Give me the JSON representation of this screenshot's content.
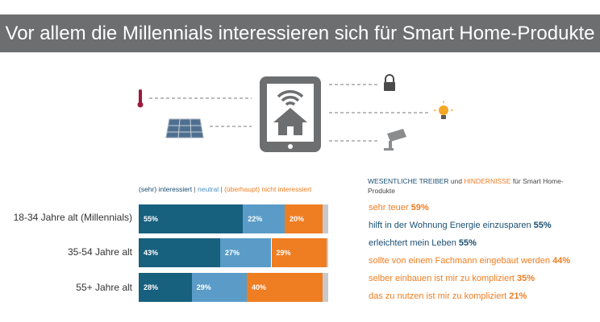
{
  "header": {
    "title": "Vor allem die Millennials interessieren sich für Smart Home-Produkte"
  },
  "illustration": {
    "icons": [
      "thermometer-icon",
      "solar-panel-icon",
      "tablet-smart-home-icon",
      "lock-icon",
      "light-bulb-icon",
      "security-camera-icon"
    ]
  },
  "colors": {
    "interested": "#17607e",
    "neutral": "#5a9cc7",
    "not_interested": "#ef7d22",
    "remainder": "#c8c9cb",
    "banner": "#6d6e70"
  },
  "legend": {
    "interested": "(sehr) interessiert",
    "separator": "|",
    "neutral": "neutral",
    "not_interested": "(überhaupt) nicht interessiert"
  },
  "chart_data": {
    "type": "bar",
    "orientation": "horizontal",
    "stacked": true,
    "categories": [
      "18-34 Jahre alt (Millennials)",
      "35-54 Jahre alt",
      "55+ Jahre alt"
    ],
    "series": [
      {
        "name": "(sehr) interessiert",
        "values": [
          55,
          43,
          28
        ],
        "labels": [
          "55%",
          "43%",
          "28%"
        ]
      },
      {
        "name": "neutral",
        "values": [
          22,
          27,
          29
        ],
        "labels": [
          "22%",
          "27%",
          "29%"
        ]
      },
      {
        "name": "(überhaupt) nicht interessiert",
        "values": [
          20,
          29,
          40
        ],
        "labels": [
          "20%",
          "29%",
          "40%"
        ]
      }
    ],
    "xlim": [
      0,
      100
    ]
  },
  "drivers": {
    "title_part1": "WESENTLICHE TREIBER",
    "title_part2": " und ",
    "title_part3": "HINDERNISSE",
    "title_part4": " für Smart Home-Produkte",
    "items": [
      {
        "text": "sehr teuer ",
        "value": "59%",
        "kind": "barrier"
      },
      {
        "text": "hilft in der Wohnung Energie einzusparen ",
        "value": "55%",
        "kind": "driver"
      },
      {
        "text": "erleichtert mein Leben ",
        "value": "55%",
        "kind": "driver"
      },
      {
        "text": "sollte von einem Fachmann eingebaut werden ",
        "value": "44%",
        "kind": "barrier"
      },
      {
        "text": "selber einbauen ist mir zu kompliziert ",
        "value": "35%",
        "kind": "barrier"
      },
      {
        "text": "das zu nutzen ist mir zu kompliziert ",
        "value": "21%",
        "kind": "barrier"
      }
    ]
  }
}
